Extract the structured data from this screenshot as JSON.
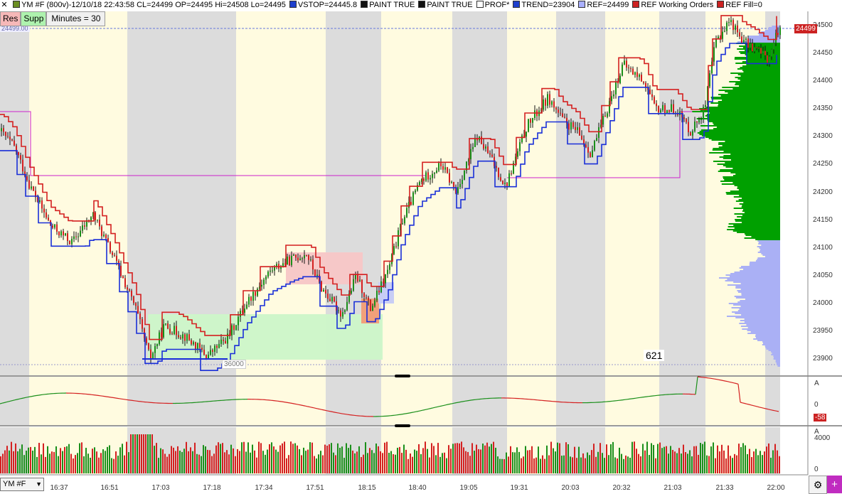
{
  "legend": [
    {
      "id": "main",
      "color": "#6b8e23",
      "text": "YM #F (800v)-12/10/18 22:43:58 CL=24499 OP=24495 Hi=24508 Lo=24495"
    },
    {
      "id": "vstop",
      "color": "#1e3fcc",
      "text": "VSTOP=24445.8"
    },
    {
      "id": "paint1",
      "color": "#111111",
      "text": "PAINT TRUE"
    },
    {
      "id": "paint2",
      "color": "#111111",
      "text": "PAINT TRUE"
    },
    {
      "id": "prof",
      "color": "#ffffff",
      "text": "PROF*"
    },
    {
      "id": "trend",
      "color": "#1e3fcc",
      "text": "TREND=23904"
    },
    {
      "id": "ref",
      "color": "#aab0ff",
      "text": "REF=24499"
    },
    {
      "id": "refwo",
      "color": "#cc2222",
      "text": "REF Working Orders"
    },
    {
      "id": "reffill",
      "color": "#cc2222",
      "text": "REF Fill=0"
    }
  ],
  "toolbar": {
    "res": "Res",
    "supp": "Supp",
    "minutes": "Minutes = 30"
  },
  "symbol": {
    "value": "YM #F"
  },
  "labels": {
    "count": "621",
    "current_price": "24499",
    "ref_price": "24499.00",
    "vol_tag": "36000"
  },
  "price_axis": [
    "24500",
    "24450",
    "24400",
    "24350",
    "24300",
    "24250",
    "24200",
    "24150",
    "24100",
    "24050",
    "24000",
    "23950",
    "23900"
  ],
  "osc_axis": {
    "top": "A",
    "mid": "0",
    "value": "-58"
  },
  "vol_axis": {
    "top": "A",
    "v4000": "4000",
    "zero": "0"
  },
  "time_axis": [
    "16:37",
    "16:51",
    "17:03",
    "17:18",
    "17:34",
    "17:51",
    "18:15",
    "18:40",
    "19:05",
    "19:31",
    "20:03",
    "20:32",
    "21:03",
    "21:33",
    "22:00"
  ],
  "colors": {
    "up": "#1a8f1a",
    "down": "#d42020",
    "trend": "#1a2fd8",
    "stop": "#d42020",
    "profile_green": "#00a000",
    "profile_blue": "#aab0f5"
  }
}
